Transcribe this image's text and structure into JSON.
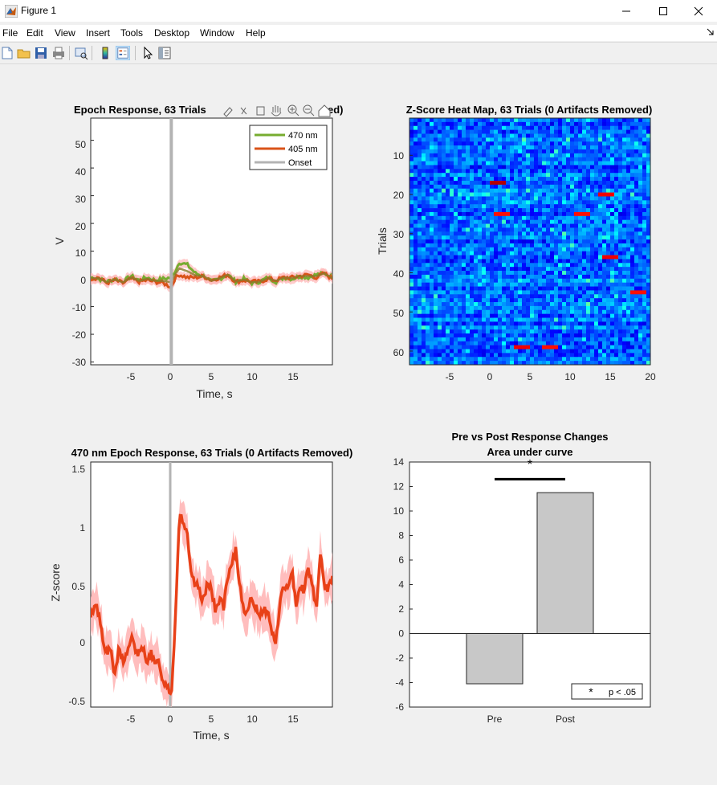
{
  "window": {
    "title": "Figure 1",
    "controls": [
      "—",
      "☐",
      "✕"
    ]
  },
  "menu": [
    "File",
    "Edit",
    "View",
    "Insert",
    "Tools",
    "Desktop",
    "Window",
    "Help"
  ],
  "toolbar_icons": [
    "new-figure-icon",
    "open-file-icon",
    "save-icon",
    "print-icon",
    "print-preview-icon",
    "colorbar-icon",
    "legend-icon",
    "pointer-icon",
    "property-inspector-icon"
  ],
  "colors": {
    "green": "#77ac30",
    "red": "#d95319",
    "onset": "#b3b3b3",
    "shade": "#ffb6b6",
    "bar": "#c8c8c8"
  },
  "panel1": {
    "title": "Epoch Response, 63 Trials",
    "title_tail": "ed)",
    "xlabel": "Time, s",
    "ylabel": "V",
    "xticks": [
      "-5",
      "0",
      "5",
      "10",
      "15"
    ],
    "yticks": [
      "50",
      "40",
      "30",
      "20",
      "10",
      "0",
      "-10",
      "-20",
      "-30"
    ],
    "legend": [
      "470 nm",
      "405 nm",
      "Onset"
    ]
  },
  "panel2": {
    "title": "Z-Score Heat Map, 63 Trials (0 Artifacts Removed)",
    "ylabel": "Trials",
    "xticks": [
      "-5",
      "0",
      "5",
      "10",
      "15",
      "20"
    ],
    "yticks": [
      "10",
      "20",
      "30",
      "40",
      "50",
      "60"
    ]
  },
  "panel3": {
    "title": "470 nm Epoch Response, 63 Trials (0 Artifacts Removed)",
    "xlabel": "Time, s",
    "ylabel": "Z-score",
    "xticks": [
      "-5",
      "0",
      "5",
      "10",
      "15"
    ],
    "yticks": [
      "1.5",
      "1",
      "0.5",
      "0",
      "-0.5"
    ]
  },
  "chart_data": [
    {
      "type": "line",
      "title": "Epoch Response, 63 Trials (0 Artifacts Removed)",
      "xlabel": "Time, s",
      "ylabel": "V",
      "xlim": [
        -10,
        20
      ],
      "ylim": [
        -31,
        58
      ],
      "legend_position": "top-right",
      "series": [
        {
          "name": "470 nm",
          "x": [
            -10,
            -9,
            -8,
            -7,
            -6,
            -5,
            -4,
            -3,
            -2,
            -1,
            0,
            0.5,
            1,
            2,
            3,
            4,
            5,
            6,
            7,
            8,
            9,
            10,
            11,
            12,
            13,
            14,
            15,
            16,
            17,
            18,
            19,
            20
          ],
          "y": [
            0.5,
            0.0,
            -1.0,
            0.0,
            -1.0,
            1.0,
            -0.5,
            0.5,
            -0.5,
            0.0,
            0.5,
            3.0,
            6.0,
            5.0,
            2.0,
            1.0,
            -1.0,
            0.0,
            1.5,
            -1.0,
            0.0,
            -1.5,
            -1.0,
            0.5,
            -1.0,
            0.5,
            0.0,
            1.0,
            0.5,
            1.5,
            2.0,
            0.5
          ]
        },
        {
          "name": "405 nm",
          "x": [
            -10,
            -9,
            -8,
            -7,
            -6,
            -5,
            -4,
            -3,
            -2,
            -1,
            0,
            0.5,
            1,
            2,
            3,
            4,
            5,
            6,
            7,
            8,
            9,
            10,
            11,
            12,
            13,
            14,
            15,
            16,
            17,
            18,
            19,
            20
          ],
          "y": [
            0.0,
            0.5,
            -1.5,
            -0.5,
            -1.5,
            0.0,
            -1.0,
            -0.5,
            -1.0,
            -1.5,
            -3.0,
            0.5,
            1.5,
            0.5,
            0.5,
            1.0,
            -0.5,
            0.5,
            1.5,
            -1.0,
            -0.5,
            -1.0,
            -1.0,
            0.0,
            -0.5,
            0.5,
            0.5,
            1.0,
            1.5,
            0.5,
            2.0,
            0.0
          ]
        },
        {
          "name": "Onset",
          "x": [
            0,
            0
          ],
          "y": [
            -31,
            58
          ]
        }
      ]
    },
    {
      "type": "heatmap",
      "title": "Z-Score Heat Map, 63 Trials (0 Artifacts Removed)",
      "ylabel": "Trials",
      "xlim": [
        -10,
        20
      ],
      "ylim": [
        63.5,
        0.5
      ],
      "rows": 63,
      "hotspots": [
        {
          "trial": 17,
          "time": 1.0,
          "z": 5.0
        },
        {
          "trial": 20,
          "time": 14.5,
          "z": 4.0
        },
        {
          "trial": 25,
          "time": 1.5,
          "z": 3.5
        },
        {
          "trial": 25,
          "time": 11.5,
          "z": 3.5
        },
        {
          "trial": 36,
          "time": 15.0,
          "z": 4.0
        },
        {
          "trial": 45,
          "time": 18.5,
          "z": 3.5
        },
        {
          "trial": 59,
          "time": 4.0,
          "z": 4.0
        },
        {
          "trial": 59,
          "time": 7.5,
          "z": 3.5
        }
      ]
    },
    {
      "type": "line",
      "title": "470 nm Epoch Response, 63 Trials (0 Artifacts Removed)",
      "xlabel": "Time, s",
      "ylabel": "Z-score",
      "xlim": [
        -10,
        20
      ],
      "ylim": [
        -0.55,
        1.55
      ],
      "series": [
        {
          "x": [
            -10,
            -9.5,
            -9,
            -8.5,
            -8,
            -7.5,
            -7,
            -6.5,
            -6,
            -5.5,
            -5,
            -4.5,
            -4,
            -3.5,
            -3,
            -2.5,
            -2,
            -1.5,
            -1,
            -0.5,
            0,
            0.5,
            1,
            1.5,
            2,
            2.5,
            3,
            3.5,
            4,
            4.5,
            5,
            5.5,
            6,
            6.5,
            7,
            7.5,
            8,
            8.5,
            9,
            9.5,
            10,
            10.5,
            11,
            11.5,
            12,
            12.5,
            13,
            13.5,
            14,
            14.5,
            15,
            15.5,
            16,
            16.5,
            17,
            17.5,
            18,
            18.5,
            19,
            19.5,
            20
          ],
          "y": [
            0.2,
            0.35,
            0.25,
            0.05,
            -0.1,
            -0.05,
            -0.3,
            -0.05,
            -0.15,
            -0.1,
            0.05,
            -0.05,
            -0.1,
            -0.05,
            -0.15,
            -0.1,
            -0.2,
            -0.15,
            -0.35,
            -0.35,
            -0.45,
            0.2,
            1.1,
            1.05,
            0.9,
            0.55,
            0.5,
            0.45,
            0.35,
            0.55,
            0.45,
            0.25,
            0.4,
            0.3,
            0.55,
            0.65,
            0.8,
            0.5,
            0.3,
            0.25,
            0.4,
            0.3,
            0.25,
            0.3,
            0.25,
            0.1,
            0.0,
            0.35,
            0.5,
            0.45,
            0.6,
            0.35,
            0.5,
            0.45,
            0.65,
            0.5,
            0.3,
            0.75,
            0.5,
            0.45,
            0.6
          ]
        }
      ]
    },
    {
      "type": "bar",
      "title": "Pre vs Post Response Changes",
      "subtitle": "Area under curve",
      "categories": [
        "Pre",
        "Post"
      ],
      "values": [
        -4.1,
        11.5
      ],
      "ylim": [
        -6,
        14
      ],
      "yticks": [
        "14",
        "12",
        "10",
        "8",
        "6",
        "4",
        "2",
        "0",
        "-2",
        "-4",
        "-6"
      ],
      "significance": {
        "marker": "*",
        "label": "p < .05",
        "bar_y": 12.6
      },
      "legend_position": "bottom-right"
    }
  ]
}
